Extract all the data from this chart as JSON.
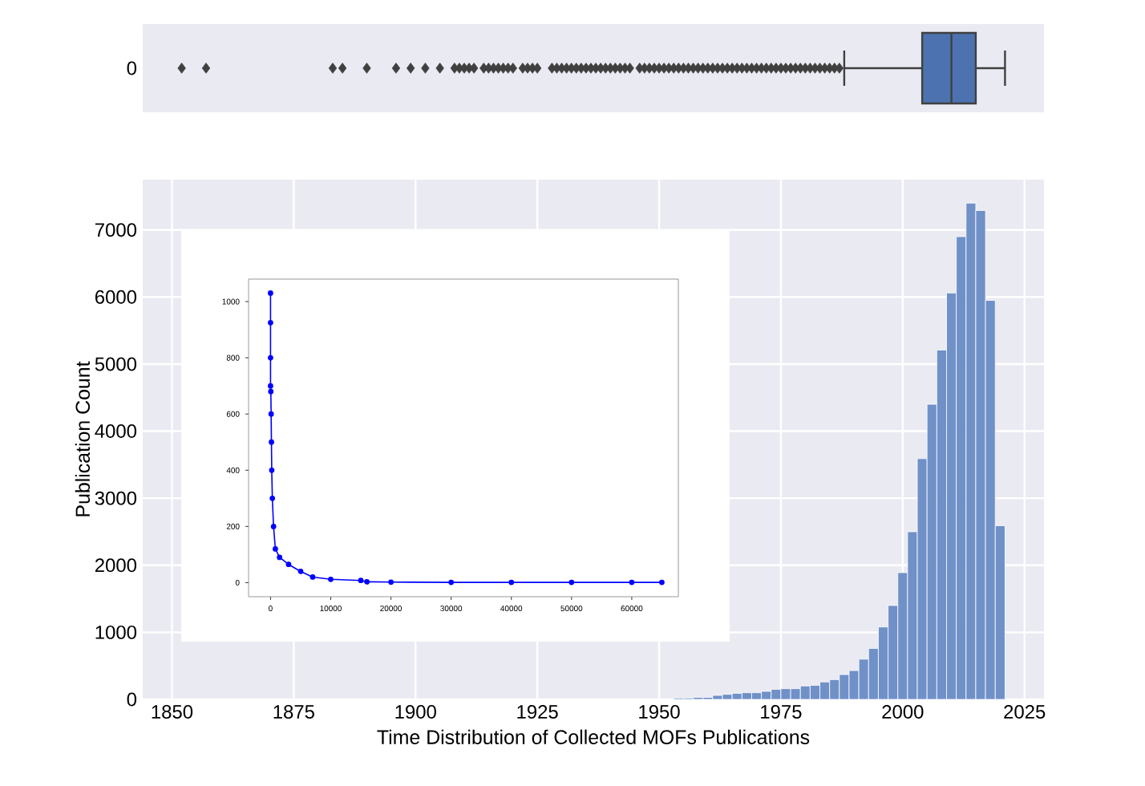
{
  "chart_data": [
    {
      "type": "box",
      "orientation": "horizontal",
      "categories": [
        "0"
      ],
      "color": "#4c72b0",
      "xlim": [
        1844,
        2029
      ],
      "tick_labels": "y",
      "boxes": [
        {
          "low": 1988,
          "q1": 2004,
          "median": 2010,
          "q3": 2015,
          "high": 2021,
          "outliers": [
            1852,
            1857,
            1883,
            1885,
            1890,
            1896,
            1899,
            1902,
            1905,
            1908,
            1909,
            1910,
            1911,
            1912,
            1914,
            1915,
            1916,
            1917,
            1918,
            1919,
            1920,
            1922,
            1923,
            1924,
            1925,
            1928,
            1929,
            1930,
            1931,
            1932,
            1933,
            1934,
            1935,
            1936,
            1937,
            1938,
            1939,
            1940,
            1941,
            1942,
            1943,
            1944,
            1946,
            1947,
            1948,
            1949,
            1950,
            1951,
            1952,
            1953,
            1954,
            1955,
            1956,
            1957,
            1958,
            1959,
            1960,
            1961,
            1962,
            1963,
            1964,
            1965,
            1966,
            1967,
            1968,
            1969,
            1970,
            1971,
            1972,
            1973,
            1974,
            1975,
            1976,
            1977,
            1978,
            1979,
            1980,
            1981,
            1982,
            1983,
            1984,
            1985,
            1986,
            1987
          ]
        }
      ]
    },
    {
      "type": "histogram",
      "color": "#7090c8",
      "xlabel": "Time Distribution of Collected MOFs Publications",
      "ylabel": "Publication Count",
      "grid": true,
      "xlim": [
        1844,
        2029
      ],
      "ylim": [
        0,
        7750
      ],
      "xticks": [
        1850,
        1875,
        1900,
        1925,
        1950,
        1975,
        2000,
        2025
      ],
      "yticks": [
        0,
        1000,
        2000,
        3000,
        4000,
        5000,
        6000,
        7000
      ],
      "bins": [
        1949,
        1951,
        1953,
        1955,
        1957,
        1959,
        1961,
        1963,
        1965,
        1967,
        1969,
        1971,
        1973,
        1975,
        1977,
        1979,
        1981,
        1983,
        1985,
        1987,
        1989,
        1991,
        1993,
        1995,
        1997,
        1999,
        2001,
        2003,
        2005,
        2007,
        2009,
        2011,
        2013,
        2015,
        2017,
        2019,
        2021
      ],
      "values": [
        null,
        null,
        20,
        20,
        30,
        30,
        60,
        75,
        90,
        100,
        100,
        120,
        150,
        160,
        160,
        200,
        210,
        260,
        295,
        370,
        430,
        600,
        760,
        1080,
        1400,
        1890,
        2500,
        3590,
        4400,
        5210,
        6060,
        6900,
        7400,
        7290,
        5950,
        2590
      ]
    },
    {
      "type": "line",
      "color": "#0000ff",
      "marker": "circle",
      "line_style": "solid",
      "xlim": [
        -3650,
        67740
      ],
      "ylim": [
        -50,
        1080
      ],
      "xticks": [
        0,
        10000,
        20000,
        30000,
        40000,
        50000,
        60000
      ],
      "yticks": [
        0,
        200,
        400,
        600,
        800,
        1000
      ],
      "x": [
        0,
        0,
        0,
        0,
        50,
        100,
        150,
        200,
        300,
        500,
        800,
        1500,
        3000,
        5000,
        7000,
        10000,
        15000,
        16000,
        20000,
        30000,
        40000,
        50000,
        60000,
        65000
      ],
      "values": [
        1030,
        925,
        800,
        700,
        680,
        600,
        500,
        400,
        300,
        200,
        120,
        90,
        65,
        40,
        20,
        12,
        8,
        3,
        2,
        1,
        1,
        1,
        1,
        1
      ]
    }
  ]
}
